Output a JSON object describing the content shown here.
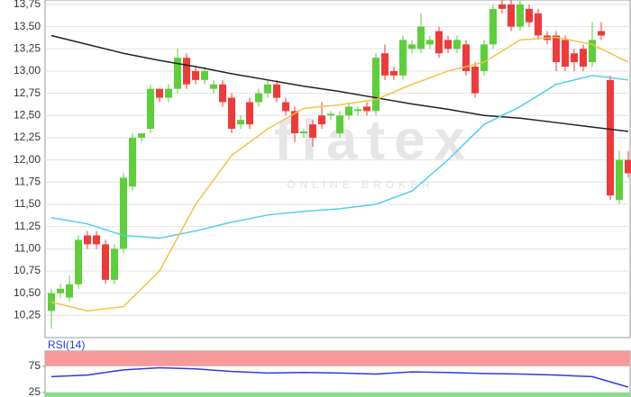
{
  "chart_data": [
    {
      "type": "candlestick",
      "watermark": {
        "text": "flatex",
        "subtext": "ONLINE BROKER"
      },
      "ylim": [
        10.0,
        13.8
      ],
      "yticks": [
        {
          "value": 10.25,
          "label": "10,25"
        },
        {
          "value": 10.5,
          "label": "10,50"
        },
        {
          "value": 10.75,
          "label": "10,75"
        },
        {
          "value": 11.0,
          "label": "11,00"
        },
        {
          "value": 11.25,
          "label": "11,25"
        },
        {
          "value": 11.5,
          "label": "11,50"
        },
        {
          "value": 11.75,
          "label": "11,75"
        },
        {
          "value": 12.0,
          "label": "12,00"
        },
        {
          "value": 12.25,
          "label": "12,25"
        },
        {
          "value": 12.5,
          "label": "12,50"
        },
        {
          "value": 12.75,
          "label": "12,75"
        },
        {
          "value": 13.0,
          "label": "13,00"
        },
        {
          "value": 13.25,
          "label": "13,25"
        },
        {
          "value": 13.5,
          "label": "13,50"
        },
        {
          "value": 13.75,
          "label": "13,75"
        }
      ],
      "grid": true,
      "up_color": "#5ccf3a",
      "down_color": "#f03a3a",
      "open": [
        10.3,
        10.5,
        10.45,
        10.6,
        11.15,
        11.15,
        11.05,
        10.65,
        11.0,
        11.7,
        12.25,
        12.35,
        12.8,
        12.7,
        12.8,
        13.15,
        13.0,
        12.9,
        12.8,
        12.85,
        12.7,
        12.4,
        12.65,
        12.65,
        12.75,
        12.85,
        12.65,
        12.55,
        12.3,
        12.4,
        12.5,
        12.5,
        12.3,
        12.5,
        12.55,
        12.6,
        12.55,
        13.2,
        13.0,
        12.95,
        13.25,
        13.25,
        13.3,
        13.45,
        13.35,
        13.25,
        13.3,
        13.05,
        13.0,
        13.3,
        13.75,
        13.75,
        13.5,
        13.7,
        13.65,
        13.4,
        13.4,
        13.35,
        13.2,
        13.25,
        13.1,
        13.45,
        12.9,
        11.55,
        12.0
      ],
      "high": [
        10.55,
        10.6,
        10.7,
        11.15,
        11.2,
        11.2,
        11.1,
        11.05,
        11.85,
        12.3,
        12.3,
        12.85,
        12.8,
        12.85,
        13.25,
        13.2,
        13.05,
        13.05,
        12.9,
        12.9,
        12.75,
        12.5,
        12.7,
        12.8,
        12.9,
        12.9,
        12.7,
        12.6,
        12.35,
        12.45,
        12.65,
        12.55,
        12.55,
        12.65,
        12.6,
        12.65,
        13.2,
        13.3,
        13.05,
        13.4,
        13.35,
        13.65,
        13.4,
        13.5,
        13.4,
        13.4,
        13.35,
        13.1,
        13.35,
        13.75,
        13.8,
        13.8,
        13.8,
        13.75,
        13.7,
        13.45,
        13.45,
        13.4,
        13.25,
        13.3,
        13.55,
        13.55,
        12.95,
        12.1,
        12.1
      ],
      "low": [
        10.1,
        10.45,
        10.4,
        10.55,
        11.0,
        11.0,
        10.6,
        10.6,
        10.95,
        11.65,
        12.2,
        12.3,
        12.65,
        12.65,
        12.75,
        12.8,
        12.85,
        12.85,
        12.75,
        12.6,
        12.3,
        12.35,
        12.35,
        12.6,
        12.7,
        12.65,
        12.5,
        12.2,
        12.25,
        12.15,
        12.35,
        12.45,
        12.25,
        12.45,
        12.5,
        12.5,
        12.5,
        12.9,
        12.9,
        12.9,
        13.2,
        13.2,
        13.25,
        13.15,
        13.2,
        13.2,
        12.95,
        12.7,
        12.95,
        13.25,
        13.65,
        13.45,
        13.45,
        13.5,
        13.35,
        13.3,
        13.0,
        13.0,
        13.0,
        13.0,
        13.05,
        13.35,
        11.55,
        11.5,
        11.8
      ],
      "close": [
        10.5,
        10.55,
        10.6,
        11.1,
        11.05,
        11.05,
        10.65,
        11.0,
        11.8,
        12.25,
        12.3,
        12.8,
        12.7,
        12.8,
        13.15,
        12.85,
        12.9,
        13.0,
        12.85,
        12.65,
        12.35,
        12.45,
        12.4,
        12.75,
        12.85,
        12.7,
        12.55,
        12.3,
        12.32,
        12.25,
        12.4,
        12.52,
        12.5,
        12.6,
        12.57,
        12.55,
        13.15,
        12.95,
        12.95,
        13.35,
        13.3,
        13.5,
        13.35,
        13.2,
        13.25,
        13.35,
        13.0,
        12.75,
        13.3,
        13.7,
        13.7,
        13.5,
        13.75,
        13.55,
        13.4,
        13.35,
        13.1,
        13.05,
        13.1,
        13.05,
        13.35,
        13.4,
        11.6,
        12.0,
        11.85
      ],
      "lines": [
        {
          "color": "#222222",
          "x": [
            0,
            4,
            8,
            12,
            16,
            20,
            24,
            28,
            32,
            36,
            40,
            44,
            48,
            52,
            56,
            60,
            64
          ],
          "values": [
            13.4,
            13.3,
            13.2,
            13.12,
            13.05,
            12.97,
            12.9,
            12.83,
            12.77,
            12.7,
            12.63,
            12.57,
            12.5,
            12.47,
            12.42,
            12.37,
            12.32
          ]
        },
        {
          "color": "#4fd0ee",
          "x": [
            0,
            4,
            8,
            12,
            16,
            20,
            24,
            28,
            32,
            36,
            40,
            44,
            48,
            52,
            56,
            60,
            64
          ],
          "values": [
            11.35,
            11.28,
            11.15,
            11.12,
            11.2,
            11.3,
            11.38,
            11.42,
            11.45,
            11.5,
            11.65,
            12.0,
            12.4,
            12.6,
            12.85,
            12.95,
            12.9
          ]
        },
        {
          "color": "#f5c242",
          "x": [
            0,
            4,
            8,
            12,
            16,
            20,
            24,
            28,
            32,
            36,
            40,
            44,
            48,
            52,
            56,
            60,
            64
          ],
          "values": [
            10.4,
            10.3,
            10.35,
            10.75,
            11.5,
            12.05,
            12.35,
            12.58,
            12.62,
            12.68,
            12.85,
            13.0,
            13.1,
            13.35,
            13.38,
            13.3,
            13.1
          ]
        }
      ]
    },
    {
      "type": "line",
      "title": "RSI(14)",
      "ylim": [
        16,
        104
      ],
      "yticks": [
        75,
        25
      ],
      "bands": [
        {
          "from": 75,
          "to": 104,
          "color": "#f59a9a"
        },
        {
          "from": 16,
          "to": 25,
          "color": "#8fdc8f"
        }
      ],
      "series": [
        {
          "color": "#2b3be0",
          "x": [
            0,
            4,
            8,
            12,
            16,
            20,
            24,
            28,
            32,
            36,
            40,
            44,
            48,
            52,
            56,
            60,
            64
          ],
          "values": [
            55,
            58,
            68,
            72,
            70,
            65,
            62,
            63,
            62,
            60,
            64,
            63,
            61,
            60,
            58,
            55,
            35
          ]
        }
      ]
    }
  ]
}
